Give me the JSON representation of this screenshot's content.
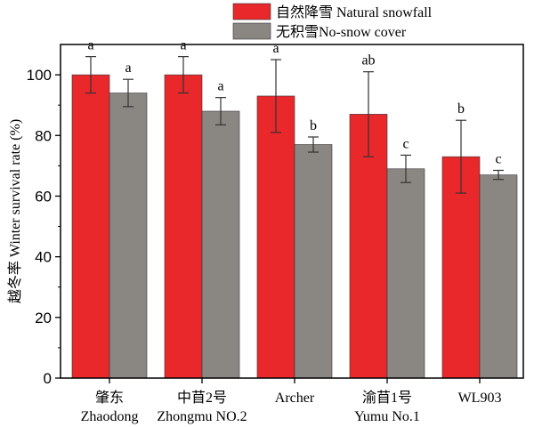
{
  "chart_data": {
    "type": "bar",
    "ylabel": "越冬率 Winter survival rate (%)",
    "ylim": [
      0,
      110
    ],
    "yticks": [
      0,
      20,
      40,
      60,
      80,
      100
    ],
    "grid": false,
    "legend_position": "top-right",
    "categories": [
      {
        "line1": "肇东",
        "line2": "Zhaodong"
      },
      {
        "line1": "中苜2号",
        "line2": "Zhongmu NO.2"
      },
      {
        "line1": "Archer",
        "line2": ""
      },
      {
        "line1": "渝苜1号",
        "line2": "Yumu No.1"
      },
      {
        "line1": "WL903",
        "line2": ""
      }
    ],
    "series": [
      {
        "name": "自然降雪 Natural snowfall",
        "color": "#e8282b",
        "values": [
          100,
          100,
          93,
          87,
          73
        ],
        "errors": [
          6,
          6,
          12,
          14,
          12
        ],
        "letters": [
          "a",
          "a",
          "a",
          "ab",
          "b"
        ]
      },
      {
        "name": "无积雪No-snow cover",
        "color": "#8a8682",
        "values": [
          94,
          88,
          77,
          69,
          67
        ],
        "errors": [
          4.5,
          4.5,
          2.5,
          4.5,
          1.5
        ],
        "letters": [
          "a",
          "a",
          "b",
          "c",
          "c"
        ]
      }
    ]
  }
}
